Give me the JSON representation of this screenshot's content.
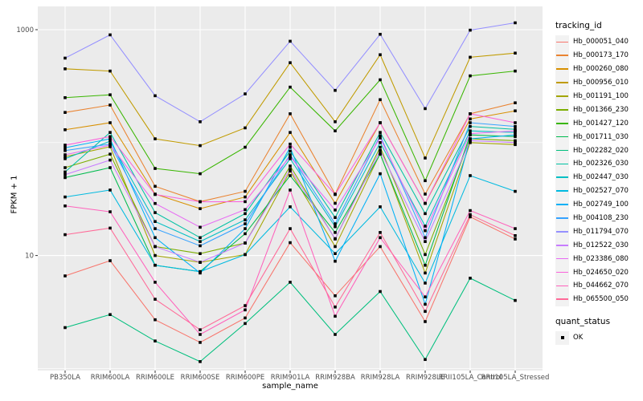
{
  "chart_data": {
    "type": "line",
    "xlabel": "sample_name",
    "ylabel": "FPKM + 1",
    "y_scale": "log10",
    "ylim": [
      1,
      1600
    ],
    "grid": "on",
    "legend_position": "right",
    "marker": "black-square",
    "panel_color": "#EBEBEB",
    "grid_color": "#FFFFFF",
    "tick_label_color": "#4D4D4D",
    "y_ticks": [
      {
        "label": "10",
        "value": 10
      },
      {
        "label": "1000",
        "value": 1000
      }
    ],
    "y_minor_ticks": [
      1,
      100
    ],
    "categories": [
      "PB350LA",
      "RRIM600LA",
      "RRIM600LE",
      "RRIM600SE",
      "RRIM600PE",
      "RRIM901LA",
      "RRIM928BA",
      "RRIM928LA",
      "RRIM928LE",
      "RRII105LA_Control",
      "RRII105LA_Stressed"
    ],
    "legend": {
      "tracking_title": "tracking_id",
      "quant_title": "quant_status",
      "quant_items": [
        {
          "label": "OK"
        }
      ]
    },
    "series": [
      {
        "name": "Hb_000051_040",
        "color": "#F8766D",
        "values": [
          6.6,
          9,
          2.7,
          1.7,
          2.8,
          13,
          4.4,
          12,
          2.6,
          22,
          14
        ]
      },
      {
        "name": "Hb_000173_170",
        "color": "#EA8331",
        "values": [
          185,
          215,
          41,
          30,
          37,
          180,
          35,
          240,
          35,
          180,
          225
        ]
      },
      {
        "name": "Hb_000260_080",
        "color": "#D89000",
        "values": [
          130,
          150,
          35,
          26,
          33,
          123,
          29,
          150,
          29,
          162,
          191
        ]
      },
      {
        "name": "Hb_000956_010",
        "color": "#C09B00",
        "values": [
          450,
          430,
          108,
          94,
          135,
          510,
          153,
          600,
          73,
          570,
          620
        ]
      },
      {
        "name": "Hb_001191_100",
        "color": "#A3A500",
        "values": [
          75,
          92,
          10,
          8.7,
          10.2,
          56,
          12,
          80,
          7,
          100,
          96
        ]
      },
      {
        "name": "Hb_001366_230",
        "color": "#7CAE00",
        "values": [
          60,
          79,
          12,
          10.4,
          12.9,
          62,
          14,
          91,
          10.2,
          108,
          104
        ]
      },
      {
        "name": "Hb_001427_120",
        "color": "#39B600",
        "values": [
          250,
          265,
          59,
          53,
          91,
          310,
          127,
          360,
          46,
          390,
          430
        ]
      },
      {
        "name": "Hb_001711_030",
        "color": "#00BB4E",
        "values": [
          49,
          60,
          8.2,
          7.2,
          15.6,
          51,
          16,
          79,
          8.2,
          117,
          113
        ]
      },
      {
        "name": "Hb_002282_020",
        "color": "#00BF7D",
        "values": [
          2.3,
          3,
          1.75,
          1.15,
          2.5,
          5.8,
          2,
          4.8,
          1.2,
          6.3,
          4
        ]
      },
      {
        "name": "Hb_002326_030",
        "color": "#00C1A3",
        "values": [
          55,
          123,
          24,
          14.4,
          23.5,
          84,
          21.7,
          123,
          23.5,
          139,
          131
        ]
      },
      {
        "name": "Hb_002447_030",
        "color": "#00BFC4",
        "values": [
          72,
          103,
          20,
          13.3,
          20.7,
          72,
          18,
          100,
          18.2,
          127,
          123
        ]
      },
      {
        "name": "Hb_002527_070",
        "color": "#00BAE0",
        "values": [
          33,
          38,
          8.2,
          7.2,
          10.2,
          27,
          10.4,
          27,
          5.7,
          51,
          37
        ]
      },
      {
        "name": "Hb_002749_100",
        "color": "#00B0F6",
        "values": [
          90,
          108,
          14.4,
          7,
          17.3,
          91,
          8.9,
          53,
          3.7,
          108,
          117
        ]
      },
      {
        "name": "Hb_004108_230",
        "color": "#35A2FF",
        "values": [
          85,
          97,
          17.3,
          12.2,
          19.1,
          78,
          19.1,
          115,
          14.4,
          150,
          139
        ]
      },
      {
        "name": "Hb_011794_070",
        "color": "#9590FF",
        "values": [
          560,
          900,
          260,
          153,
          270,
          790,
          290,
          910,
          200,
          990,
          1150
        ]
      },
      {
        "name": "Hb_012522_030",
        "color": "#C77CFF",
        "values": [
          52,
          70,
          12,
          8.7,
          12.9,
          58,
          14.1,
          85,
          13.3,
          104,
          100
        ]
      },
      {
        "name": "Hb_023386_080",
        "color": "#E76BF3",
        "values": [
          78,
          95,
          28.9,
          17.8,
          25.5,
          75,
          25.3,
          110,
          16.6,
          120,
          127
        ]
      },
      {
        "name": "Hb_024650_020",
        "color": "#FA62DB",
        "values": [
          95,
          113,
          34.7,
          29.9,
          30,
          97,
          34.7,
          150,
          28.9,
          180,
          150
        ]
      },
      {
        "name": "Hb_044662_070",
        "color": "#FF62BC",
        "values": [
          27.5,
          24.4,
          5.8,
          2,
          3.3,
          38,
          2.9,
          14.4,
          4.3,
          25,
          17.3
        ]
      },
      {
        "name": "Hb_065500_050",
        "color": "#FF6A98",
        "values": [
          15.3,
          17.5,
          4.1,
          2.2,
          3.6,
          17.3,
          3.5,
          16,
          3.2,
          23,
          15
        ]
      }
    ]
  }
}
